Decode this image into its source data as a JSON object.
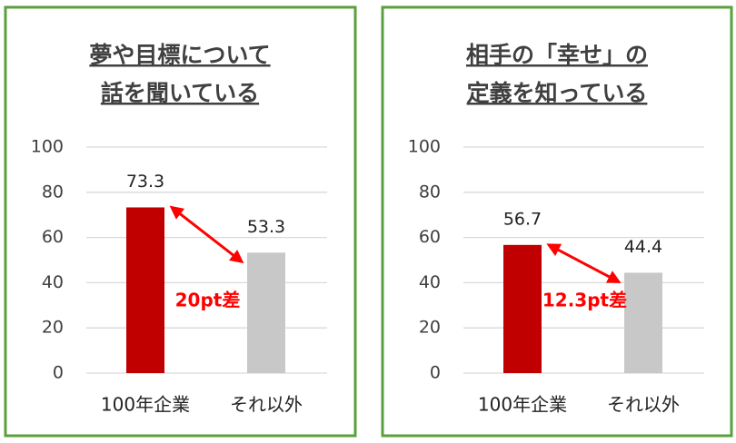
{
  "chart_data": [
    {
      "type": "bar",
      "title": [
        "夢や目標について",
        "話を聞いている"
      ],
      "categories": [
        "100年企業",
        "それ以外"
      ],
      "values": [
        73.3,
        53.3
      ],
      "colors": [
        "#c00000",
        "#c8c8c8"
      ],
      "ylim": [
        0,
        100
      ],
      "yticks": [
        0,
        20,
        40,
        60,
        80,
        100
      ],
      "grid": true,
      "annotation": "20pt差"
    },
    {
      "type": "bar",
      "title": [
        "相手の「幸せ」の",
        "定義を知っている"
      ],
      "categories": [
        "100年企業",
        "それ以外"
      ],
      "values": [
        56.7,
        44.4
      ],
      "colors": [
        "#c00000",
        "#c8c8c8"
      ],
      "ylim": [
        0,
        100
      ],
      "yticks": [
        0,
        20,
        40,
        60,
        80,
        100
      ],
      "grid": true,
      "annotation": "12.3pt差"
    }
  ]
}
